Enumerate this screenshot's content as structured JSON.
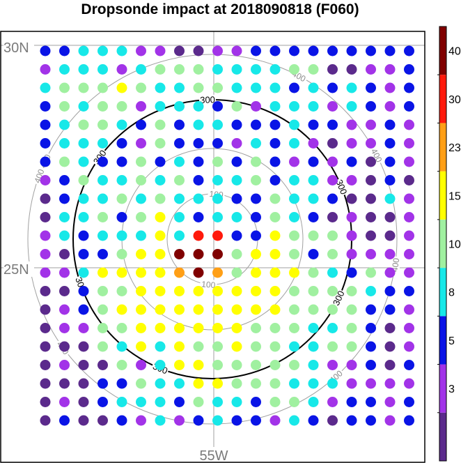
{
  "chart_data": {
    "type": "scatter",
    "title": "Dropsonde impact at 2018090818 (F060)",
    "latitude_labels": [
      "30N",
      "25N"
    ],
    "longitude_labels": [
      "55W"
    ],
    "range_rings": [
      {
        "value": 100,
        "labels": [
          "100",
          "100"
        ]
      },
      {
        "value": 200,
        "labels": []
      },
      {
        "value": 300,
        "labels": [
          "300",
          "300",
          "300",
          "300",
          "300",
          "300"
        ],
        "highlighted": true
      },
      {
        "value": 400,
        "labels": [
          "400",
          "400",
          "400",
          "400",
          "400",
          "400",
          "400"
        ]
      }
    ],
    "colorbar": {
      "ticks": [
        "3",
        "5",
        "8",
        "10",
        "15",
        "23",
        "30",
        "40"
      ],
      "bins": [
        {
          "label": "<3",
          "color": "#5b2a8c"
        },
        {
          "label": "3-5",
          "color": "#a233e8"
        },
        {
          "label": "5-8",
          "color": "#0a14e6"
        },
        {
          "label": "8-10",
          "color": "#17e8e8"
        },
        {
          "label": "10-15",
          "color": "#a0f0a0"
        },
        {
          "label": "15-23",
          "color": "#ffff00"
        },
        {
          "label": "23-30",
          "color": "#ff9f16"
        },
        {
          "label": "30-40",
          "color": "#ff1a0c"
        },
        {
          "label": ">40",
          "color": "#800000"
        }
      ]
    },
    "grid": {
      "cols": 20,
      "rows": 21,
      "cells": [
        "22333110011222222222",
        "13331344433334400112",
        "34445433443332323212",
        "24344133324133313212",
        "23443242332223221121",
        "23332142221323101121",
        "24322423242421212021",
        "12433434233423311020",
        "02334343332243320031",
        "03342453233243201001",
        "13233353772254441001",
        "10224558884554241111",
        "11355556864555432411",
        "00244555555554444322",
        "01245555555554444221",
        "01144555555444334201",
        "00043535445443344201",
        "01004135544444311202",
        "00022433554443331111",
        "01023332433244312212",
        "02002131232213202212"
      ]
    }
  }
}
